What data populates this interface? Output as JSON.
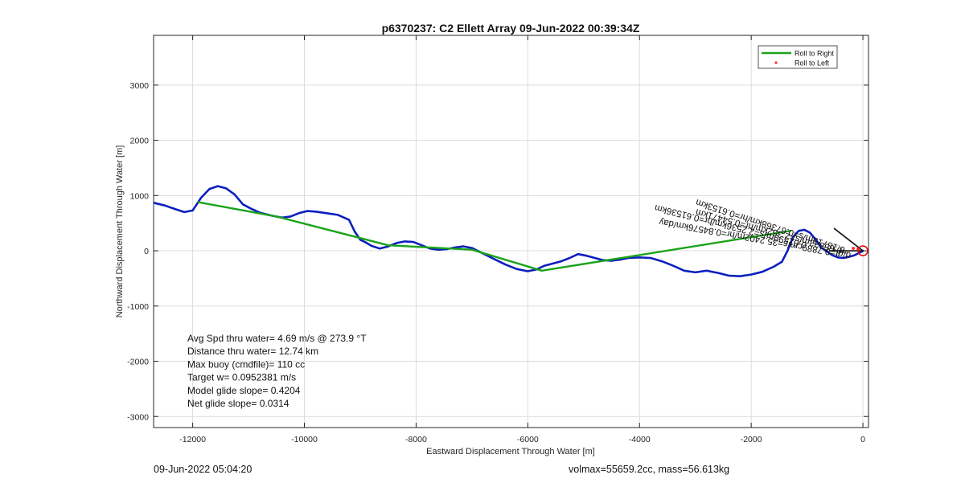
{
  "chart_data": {
    "type": "line",
    "title": "p6370237: C2 Ellett Array 09-Jun-2022 00:39:34Z",
    "xlabel": "Eastward Displacement Through Water [m]",
    "ylabel": "Northward Displacement Through Water [m]",
    "xlim": [
      -12700,
      100
    ],
    "ylim": [
      -3200,
      3900
    ],
    "xticks": [
      -12000,
      -10000,
      -8000,
      -6000,
      -4000,
      -2000,
      0
    ],
    "yticks": [
      -3000,
      -2000,
      -1000,
      0,
      1000,
      2000,
      3000
    ],
    "grid": true,
    "legend": {
      "placement": "top-right",
      "entries": [
        {
          "label": "Roll to Right",
          "color": "#1aa31a",
          "style": "line"
        },
        {
          "label": "Roll to Left",
          "color": "#ff3030",
          "style": "dot"
        }
      ]
    },
    "series": [
      {
        "name": "",
        "color": "#0c1fbf",
        "x": [
          -12700,
          -12500,
          -12300,
          -12150,
          -12000,
          -11850,
          -11700,
          -11550,
          -11400,
          -11250,
          -11100,
          -10950,
          -10800,
          -10600,
          -10400,
          -10250,
          -10100,
          -9950,
          -9800,
          -9600,
          -9400,
          -9200,
          -9100,
          -9000,
          -8900,
          -8800,
          -8650,
          -8500,
          -8350,
          -8200,
          -8050,
          -7900,
          -7750,
          -7600,
          -7450,
          -7300,
          -7150,
          -7000,
          -6800,
          -6600,
          -6400,
          -6200,
          -6000,
          -5850,
          -5700,
          -5550,
          -5400,
          -5250,
          -5100,
          -4950,
          -4800,
          -4650,
          -4500,
          -4350,
          -4200,
          -4000,
          -3800,
          -3600,
          -3400,
          -3200,
          -3000,
          -2800,
          -2600,
          -2400,
          -2200,
          -2000,
          -1800,
          -1600,
          -1450,
          -1350,
          -1250,
          -1150,
          -1050,
          -950,
          -850,
          -750,
          -650,
          -550,
          -450,
          -350,
          -250,
          -150,
          -50,
          0
        ],
        "y": [
          870,
          820,
          750,
          700,
          730,
          960,
          1120,
          1170,
          1130,
          1020,
          840,
          760,
          690,
          640,
          600,
          620,
          680,
          720,
          710,
          680,
          650,
          560,
          350,
          200,
          150,
          90,
          40,
          80,
          140,
          170,
          160,
          100,
          40,
          20,
          30,
          60,
          80,
          50,
          -50,
          -150,
          -250,
          -330,
          -370,
          -340,
          -270,
          -230,
          -190,
          -130,
          -60,
          -90,
          -130,
          -170,
          -180,
          -160,
          -130,
          -120,
          -130,
          -190,
          -270,
          -360,
          -390,
          -360,
          -400,
          -450,
          -460,
          -430,
          -380,
          -290,
          -200,
          0,
          250,
          360,
          380,
          330,
          210,
          60,
          -10,
          -80,
          -120,
          -130,
          -110,
          -80,
          -30,
          0
        ]
      },
      {
        "name": "Roll to Right",
        "color": "#1aa31a",
        "x": [
          -11900,
          -10500,
          -8500,
          -7000,
          -5750,
          -1300
        ],
        "y": [
          880,
          620,
          100,
          20,
          -360,
          360
        ]
      }
    ],
    "annotations": [
      {
        "text": "d/dt=9.7889cm/s=35.2402m/hr=0.84576km/day",
        "x": -210,
        "y": -35,
        "angle_deg": 190
      },
      {
        "text": "=0.65333m/s=2.352km/hr=0.54471km",
        "x": -270,
        "y": 25,
        "angle_deg": 195
      },
      {
        "text": "0.18713m/s=0.67368km/hr=0.6153km",
        "x": -310,
        "y": 60,
        "angle_deg": 198
      },
      {
        "text": "0.62599m/s=2.2536km/hr=0.61536km",
        "x": -1000,
        "y": 150,
        "angle_deg": 194
      }
    ],
    "info_text": [
      "Avg Spd thru water=  4.69 m/s @ 273.9 °T",
      "Distance thru water= 12.74 km",
      "Max buoy (cmdfile)= 110 cc",
      "Target w= 0.0952381 m/s",
      "Model glide slope= 0.4204",
      "Net glide slope= 0.0314"
    ]
  },
  "footer": {
    "left": "09-Jun-2022 05:04:20",
    "right": "volmax=55659.2cc, mass=56.613kg"
  }
}
